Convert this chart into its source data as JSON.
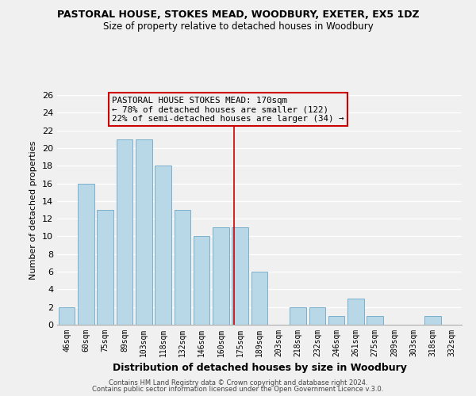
{
  "title": "PASTORAL HOUSE, STOKES MEAD, WOODBURY, EXETER, EX5 1DZ",
  "subtitle": "Size of property relative to detached houses in Woodbury",
  "xlabel": "Distribution of detached houses by size in Woodbury",
  "ylabel": "Number of detached properties",
  "bar_labels": [
    "46sqm",
    "60sqm",
    "75sqm",
    "89sqm",
    "103sqm",
    "118sqm",
    "132sqm",
    "146sqm",
    "160sqm",
    "175sqm",
    "189sqm",
    "203sqm",
    "218sqm",
    "232sqm",
    "246sqm",
    "261sqm",
    "275sqm",
    "289sqm",
    "303sqm",
    "318sqm",
    "332sqm"
  ],
  "bar_values": [
    2,
    16,
    13,
    21,
    21,
    18,
    13,
    10,
    11,
    11,
    6,
    0,
    2,
    2,
    1,
    3,
    1,
    0,
    0,
    1,
    0
  ],
  "bar_color": "#b8d8e8",
  "bar_edge_color": "#7ab0cc",
  "marker_line_color": "#cc0000",
  "annotation_line1": "PASTORAL HOUSE STOKES MEAD: 170sqm",
  "annotation_line2": "← 78% of detached houses are smaller (122)",
  "annotation_line3": "22% of semi-detached houses are larger (34) →",
  "annotation_box_edge": "#cc0000",
  "ylim": [
    0,
    26
  ],
  "yticks": [
    0,
    2,
    4,
    6,
    8,
    10,
    12,
    14,
    16,
    18,
    20,
    22,
    24,
    26
  ],
  "footer_line1": "Contains HM Land Registry data © Crown copyright and database right 2024.",
  "footer_line2": "Contains public sector information licensed under the Open Government Licence v.3.0.",
  "bg_color": "#f0f0f0",
  "plot_bg_color": "#f0f0f0",
  "grid_color": "#ffffff"
}
